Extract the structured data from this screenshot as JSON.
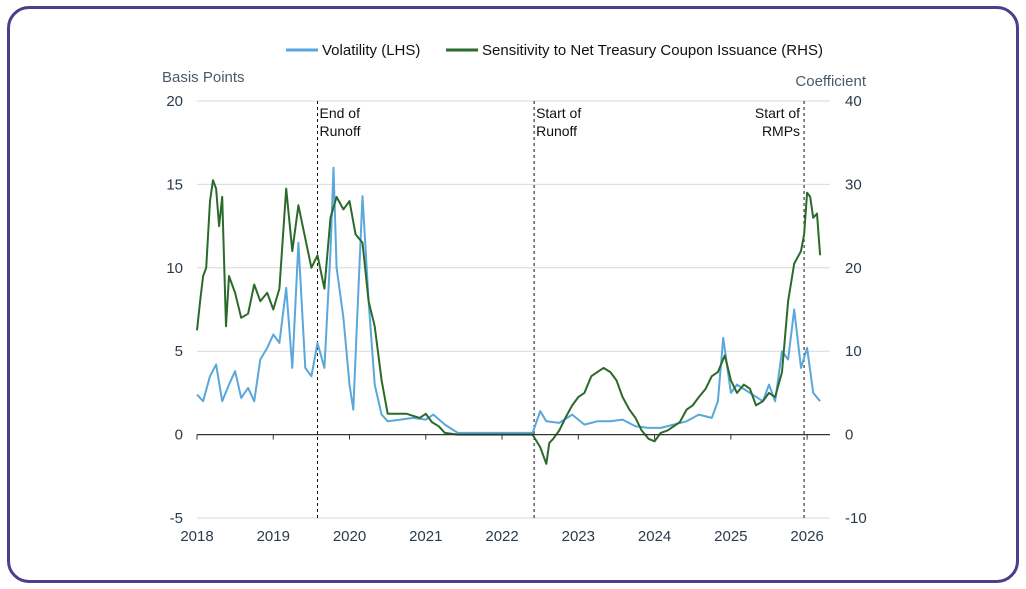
{
  "chart_data": {
    "type": "line",
    "title": "",
    "left_axis_label": "Basis Points",
    "right_axis_label": "Coefficient",
    "left_ylim": [
      -5,
      20
    ],
    "right_ylim": [
      -10,
      40
    ],
    "left_ticks": [
      "-5",
      "0",
      "5",
      "10",
      "15",
      "20"
    ],
    "right_ticks": [
      "-10",
      "0",
      "10",
      "20",
      "30",
      "40"
    ],
    "x_ticks": [
      "2018",
      "2019",
      "2020",
      "2021",
      "2022",
      "2023",
      "2024",
      "2025",
      "2026"
    ],
    "grid": "horizontal",
    "legend_placement": "top",
    "annotations": [
      {
        "label1": "End of",
        "label2": "Runoff",
        "x": 2019.58
      },
      {
        "label1": "Start of",
        "label2": "Runoff",
        "x": 2022.42
      },
      {
        "label1": "Start of",
        "label2": "RMPs",
        "x": 2025.96
      }
    ],
    "series": [
      {
        "name": "Volatility (LHS)",
        "axis": "left",
        "color": "#5aa7dc",
        "points": [
          [
            2018.0,
            2.4
          ],
          [
            2018.08,
            2.0
          ],
          [
            2018.17,
            3.5
          ],
          [
            2018.25,
            4.2
          ],
          [
            2018.33,
            2.0
          ],
          [
            2018.42,
            3.0
          ],
          [
            2018.5,
            3.8
          ],
          [
            2018.58,
            2.2
          ],
          [
            2018.67,
            2.8
          ],
          [
            2018.75,
            2.0
          ],
          [
            2018.83,
            4.5
          ],
          [
            2018.92,
            5.2
          ],
          [
            2019.0,
            6.0
          ],
          [
            2019.08,
            5.5
          ],
          [
            2019.17,
            8.8
          ],
          [
            2019.25,
            4.0
          ],
          [
            2019.33,
            11.5
          ],
          [
            2019.42,
            4.0
          ],
          [
            2019.5,
            3.5
          ],
          [
            2019.58,
            5.5
          ],
          [
            2019.67,
            4.0
          ],
          [
            2019.75,
            11.0
          ],
          [
            2019.79,
            16.0
          ],
          [
            2019.83,
            10.0
          ],
          [
            2019.92,
            7.0
          ],
          [
            2020.0,
            3.0
          ],
          [
            2020.05,
            1.5
          ],
          [
            2020.1,
            7.0
          ],
          [
            2020.17,
            14.3
          ],
          [
            2020.25,
            8.0
          ],
          [
            2020.33,
            3.0
          ],
          [
            2020.42,
            1.2
          ],
          [
            2020.5,
            0.8
          ],
          [
            2020.67,
            0.9
          ],
          [
            2020.83,
            1.0
          ],
          [
            2021.0,
            0.9
          ],
          [
            2021.1,
            1.2
          ],
          [
            2021.25,
            0.6
          ],
          [
            2021.42,
            0.1
          ],
          [
            2021.6,
            0.1
          ],
          [
            2021.8,
            0.1
          ],
          [
            2022.0,
            0.1
          ],
          [
            2022.2,
            0.1
          ],
          [
            2022.4,
            0.1
          ],
          [
            2022.5,
            1.4
          ],
          [
            2022.58,
            0.8
          ],
          [
            2022.75,
            0.7
          ],
          [
            2022.92,
            1.2
          ],
          [
            2023.08,
            0.6
          ],
          [
            2023.25,
            0.8
          ],
          [
            2023.42,
            0.8
          ],
          [
            2023.58,
            0.9
          ],
          [
            2023.75,
            0.5
          ],
          [
            2023.92,
            0.4
          ],
          [
            2024.08,
            0.4
          ],
          [
            2024.25,
            0.6
          ],
          [
            2024.42,
            0.8
          ],
          [
            2024.58,
            1.2
          ],
          [
            2024.75,
            1.0
          ],
          [
            2024.83,
            2.0
          ],
          [
            2024.9,
            5.8
          ],
          [
            2025.0,
            2.5
          ],
          [
            2025.08,
            3.0
          ],
          [
            2025.25,
            2.5
          ],
          [
            2025.42,
            2.0
          ],
          [
            2025.5,
            3.0
          ],
          [
            2025.58,
            2.0
          ],
          [
            2025.67,
            5.0
          ],
          [
            2025.75,
            4.5
          ],
          [
            2025.83,
            7.5
          ],
          [
            2025.92,
            4.0
          ],
          [
            2026.0,
            5.2
          ],
          [
            2026.08,
            2.5
          ],
          [
            2026.17,
            2.0
          ]
        ]
      },
      {
        "name": "Sensitivity to Net Treasury Coupon Issuance (RHS)",
        "axis": "right",
        "color": "#2b6a2b",
        "points": [
          [
            2018.0,
            12.5
          ],
          [
            2018.04,
            16.0
          ],
          [
            2018.08,
            19.0
          ],
          [
            2018.12,
            20.0
          ],
          [
            2018.17,
            28.0
          ],
          [
            2018.21,
            30.5
          ],
          [
            2018.25,
            29.5
          ],
          [
            2018.29,
            25.0
          ],
          [
            2018.33,
            28.5
          ],
          [
            2018.38,
            13.0
          ],
          [
            2018.42,
            19.0
          ],
          [
            2018.5,
            17.0
          ],
          [
            2018.58,
            14.0
          ],
          [
            2018.67,
            14.5
          ],
          [
            2018.75,
            18.0
          ],
          [
            2018.83,
            16.0
          ],
          [
            2018.92,
            17.0
          ],
          [
            2019.0,
            15.0
          ],
          [
            2019.08,
            17.5
          ],
          [
            2019.17,
            29.5
          ],
          [
            2019.25,
            22.0
          ],
          [
            2019.33,
            27.5
          ],
          [
            2019.42,
            23.5
          ],
          [
            2019.5,
            20.0
          ],
          [
            2019.58,
            21.5
          ],
          [
            2019.67,
            17.5
          ],
          [
            2019.75,
            26.0
          ],
          [
            2019.83,
            28.5
          ],
          [
            2019.92,
            27.0
          ],
          [
            2020.0,
            28.0
          ],
          [
            2020.08,
            24.0
          ],
          [
            2020.17,
            23.0
          ],
          [
            2020.25,
            16.0
          ],
          [
            2020.33,
            13.0
          ],
          [
            2020.42,
            6.5
          ],
          [
            2020.5,
            2.5
          ],
          [
            2020.58,
            2.5
          ],
          [
            2020.75,
            2.5
          ],
          [
            2020.92,
            2.0
          ],
          [
            2021.0,
            2.5
          ],
          [
            2021.08,
            1.5
          ],
          [
            2021.17,
            1.0
          ],
          [
            2021.25,
            0.2
          ],
          [
            2021.42,
            0.0
          ],
          [
            2021.6,
            0.0
          ],
          [
            2021.8,
            0.0
          ],
          [
            2022.0,
            0.0
          ],
          [
            2022.2,
            0.0
          ],
          [
            2022.4,
            0.0
          ],
          [
            2022.5,
            -1.5
          ],
          [
            2022.58,
            -3.5
          ],
          [
            2022.62,
            -1.0
          ],
          [
            2022.67,
            -0.5
          ],
          [
            2022.75,
            0.5
          ],
          [
            2022.83,
            2.0
          ],
          [
            2022.92,
            3.5
          ],
          [
            2023.0,
            4.5
          ],
          [
            2023.08,
            5.0
          ],
          [
            2023.17,
            7.0
          ],
          [
            2023.25,
            7.5
          ],
          [
            2023.33,
            8.0
          ],
          [
            2023.42,
            7.5
          ],
          [
            2023.5,
            6.5
          ],
          [
            2023.58,
            4.5
          ],
          [
            2023.67,
            3.0
          ],
          [
            2023.75,
            2.0
          ],
          [
            2023.83,
            0.5
          ],
          [
            2023.92,
            -0.5
          ],
          [
            2024.0,
            -0.8
          ],
          [
            2024.08,
            0.2
          ],
          [
            2024.17,
            0.5
          ],
          [
            2024.25,
            1.0
          ],
          [
            2024.33,
            1.5
          ],
          [
            2024.42,
            3.0
          ],
          [
            2024.5,
            3.5
          ],
          [
            2024.58,
            4.5
          ],
          [
            2024.67,
            5.5
          ],
          [
            2024.75,
            7.0
          ],
          [
            2024.83,
            7.5
          ],
          [
            2024.92,
            9.5
          ],
          [
            2025.0,
            6.5
          ],
          [
            2025.08,
            5.0
          ],
          [
            2025.17,
            6.0
          ],
          [
            2025.25,
            5.5
          ],
          [
            2025.33,
            3.5
          ],
          [
            2025.42,
            4.0
          ],
          [
            2025.5,
            5.0
          ],
          [
            2025.58,
            4.5
          ],
          [
            2025.67,
            7.5
          ],
          [
            2025.75,
            16.0
          ],
          [
            2025.83,
            20.5
          ],
          [
            2025.92,
            22.0
          ],
          [
            2025.96,
            24.0
          ],
          [
            2026.0,
            29.0
          ],
          [
            2026.04,
            28.5
          ],
          [
            2026.08,
            26.0
          ],
          [
            2026.13,
            26.5
          ],
          [
            2026.17,
            21.5
          ]
        ]
      }
    ]
  }
}
